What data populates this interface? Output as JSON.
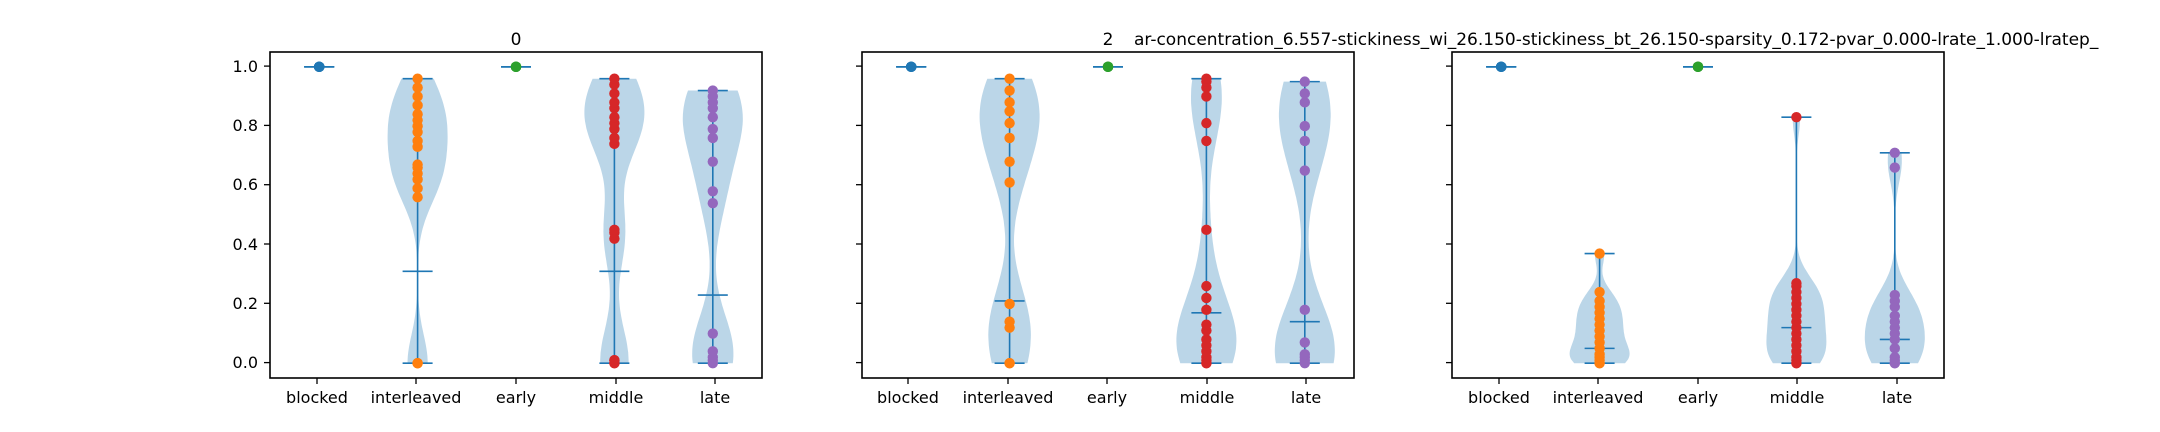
{
  "chart_data": [
    {
      "type": "violin",
      "title": "0",
      "categories": [
        "blocked",
        "interleaved",
        "early",
        "middle",
        "late"
      ],
      "ylim": [
        -0.05,
        1.05
      ],
      "yticks": [
        "0.0",
        "0.2",
        "0.4",
        "0.6",
        "0.8",
        "1.0"
      ],
      "grid": false,
      "series": [
        {
          "category": "blocked",
          "color": "#1f77b4",
          "min": 1.0,
          "median": 1.0,
          "max": 1.0,
          "points": [
            1.0,
            1.0,
            1.0,
            1.0,
            1.0
          ]
        },
        {
          "category": "interleaved",
          "color": "#ff7f0e",
          "min": 0.0,
          "median": 0.31,
          "max": 0.96,
          "points": [
            0.0,
            0.0,
            0.0,
            0.56,
            0.59,
            0.62,
            0.64,
            0.66,
            0.67,
            0.73,
            0.75,
            0.78,
            0.8,
            0.82,
            0.84,
            0.87,
            0.9,
            0.93,
            0.96
          ]
        },
        {
          "category": "early",
          "color": "#2ca02c",
          "min": 1.0,
          "median": 1.0,
          "max": 1.0,
          "points": [
            1.0,
            1.0,
            1.0,
            1.0,
            1.0
          ]
        },
        {
          "category": "middle",
          "color": "#d62728",
          "min": 0.0,
          "median": 0.31,
          "max": 0.96,
          "points": [
            0.0,
            0.0,
            0.01,
            0.01,
            0.42,
            0.44,
            0.45,
            0.74,
            0.76,
            0.79,
            0.81,
            0.83,
            0.86,
            0.88,
            0.91,
            0.94,
            0.96
          ]
        },
        {
          "category": "late",
          "color": "#9467bd",
          "min": 0.0,
          "median": 0.23,
          "max": 0.92,
          "points": [
            0.0,
            0.01,
            0.02,
            0.04,
            0.1,
            0.54,
            0.58,
            0.68,
            0.76,
            0.79,
            0.83,
            0.86,
            0.88,
            0.9,
            0.92
          ]
        }
      ]
    },
    {
      "type": "violin",
      "title": "2",
      "categories": [
        "blocked",
        "interleaved",
        "early",
        "middle",
        "late"
      ],
      "ylim": [
        -0.05,
        1.05
      ],
      "grid": false,
      "series": [
        {
          "category": "blocked",
          "color": "#1f77b4",
          "min": 1.0,
          "median": 1.0,
          "max": 1.0,
          "points": [
            1.0,
            1.0,
            1.0,
            1.0
          ]
        },
        {
          "category": "interleaved",
          "color": "#ff7f0e",
          "min": 0.0,
          "median": 0.21,
          "max": 0.96,
          "points": [
            0.0,
            0.0,
            0.12,
            0.14,
            0.2,
            0.61,
            0.68,
            0.76,
            0.81,
            0.85,
            0.88,
            0.92,
            0.96
          ]
        },
        {
          "category": "early",
          "color": "#2ca02c",
          "min": 1.0,
          "median": 1.0,
          "max": 1.0,
          "points": [
            1.0,
            1.0,
            1.0,
            1.0
          ]
        },
        {
          "category": "middle",
          "color": "#d62728",
          "min": 0.0,
          "median": 0.17,
          "max": 0.96,
          "points": [
            0.0,
            0.0,
            0.01,
            0.02,
            0.04,
            0.06,
            0.08,
            0.11,
            0.13,
            0.18,
            0.22,
            0.26,
            0.45,
            0.75,
            0.81,
            0.9,
            0.93,
            0.95,
            0.96
          ]
        },
        {
          "category": "late",
          "color": "#9467bd",
          "min": 0.0,
          "median": 0.14,
          "max": 0.95,
          "points": [
            0.0,
            0.01,
            0.02,
            0.03,
            0.07,
            0.18,
            0.65,
            0.75,
            0.8,
            0.88,
            0.91,
            0.95
          ]
        }
      ]
    },
    {
      "type": "violin",
      "title": "ar-concentration_6.557-stickiness_wi_26.150-stickiness_bt_26.150-sparsity_0.172-pvar_0.000-lrate_1.000-lratep_",
      "categories": [
        "blocked",
        "interleaved",
        "early",
        "middle",
        "late"
      ],
      "ylim": [
        -0.05,
        1.05
      ],
      "grid": false,
      "series": [
        {
          "category": "blocked",
          "color": "#1f77b4",
          "min": 1.0,
          "median": 1.0,
          "max": 1.0,
          "points": [
            1.0,
            1.0,
            1.0,
            1.0
          ]
        },
        {
          "category": "interleaved",
          "color": "#ff7f0e",
          "min": 0.0,
          "median": 0.05,
          "max": 0.37,
          "points": [
            0.0,
            0.0,
            0.01,
            0.02,
            0.03,
            0.05,
            0.07,
            0.09,
            0.11,
            0.13,
            0.15,
            0.17,
            0.19,
            0.21,
            0.24,
            0.37
          ]
        },
        {
          "category": "early",
          "color": "#2ca02c",
          "min": 1.0,
          "median": 1.0,
          "max": 1.0,
          "points": [
            1.0,
            1.0,
            1.0,
            1.0
          ]
        },
        {
          "category": "middle",
          "color": "#d62728",
          "min": 0.0,
          "median": 0.12,
          "max": 0.83,
          "points": [
            0.0,
            0.0,
            0.01,
            0.02,
            0.04,
            0.06,
            0.08,
            0.1,
            0.12,
            0.14,
            0.16,
            0.18,
            0.2,
            0.22,
            0.24,
            0.26,
            0.27,
            0.83
          ]
        },
        {
          "category": "late",
          "color": "#9467bd",
          "min": 0.0,
          "median": 0.08,
          "max": 0.71,
          "points": [
            0.0,
            0.0,
            0.01,
            0.02,
            0.05,
            0.08,
            0.1,
            0.12,
            0.14,
            0.16,
            0.19,
            0.21,
            0.23,
            0.66,
            0.71
          ]
        }
      ]
    }
  ],
  "colors": {
    "line": "#1f77b4",
    "violin_fill": "#1f77b4",
    "blocked": "#1f77b4",
    "interleaved": "#ff7f0e",
    "early": "#2ca02c",
    "middle": "#d62728",
    "late": "#9467bd"
  }
}
